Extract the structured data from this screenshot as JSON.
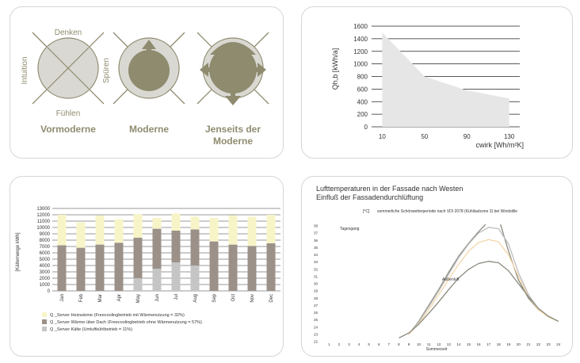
{
  "colors": {
    "olive": "#8f8b6f",
    "olive_light": "#d9d8d2",
    "chart_gray": "#e6e6e6",
    "brown": "#9c9189",
    "cream": "#f7f5c8",
    "light_gray": "#c5c5c5",
    "curve_dark": "#8a8a7e",
    "curve_gray": "#bdbdbd",
    "curve_peach": "#f3d6a8"
  },
  "diagram": {
    "top_label": "Denken",
    "bottom_label": "Fühlen",
    "left_label": "Intuition",
    "right_label": "Spüren",
    "caption1": "Vormoderne",
    "caption2": "Moderne",
    "caption3_line1": "Jenseits der",
    "caption3_line2": "Moderne"
  },
  "chart_data": [
    {
      "type": "area",
      "ylabel": "Qh,b [kWh/a]",
      "xlabel": "cwirk [Wh/m²K]",
      "x": [
        10,
        50,
        90,
        130
      ],
      "x_tick_labels": [
        "10",
        "50",
        "90",
        "130"
      ],
      "y": [
        1500,
        800,
        580,
        450
      ],
      "ylim": [
        0,
        1600
      ],
      "y_ticks": [
        0,
        200,
        400,
        600,
        800,
        1000,
        1200,
        1400,
        1600
      ],
      "grid": true
    },
    {
      "type": "bar",
      "ylabel": "[Kältemenge kWh]",
      "categories": [
        "Jan",
        "Feb",
        "Mar",
        "Apr",
        "May",
        "Jun",
        "Jul",
        "Aug",
        "Sep",
        "Oct",
        "Nov",
        "Dec"
      ],
      "ylim": [
        0,
        13000
      ],
      "y_ticks": [
        0,
        1000,
        2000,
        3000,
        4000,
        5000,
        6000,
        7000,
        8000,
        9000,
        10000,
        11000,
        12000,
        13000
      ],
      "series": [
        {
          "name": "Q _Server Kälte (Umluftkühlbetrieb = 11%)",
          "values": [
            0,
            0,
            0,
            0,
            2000,
            3500,
            4500,
            4000,
            0,
            0,
            0,
            0
          ]
        },
        {
          "name": "Q _Server Wärme über Dach (Freecoolingbetrieb ohne Wärmenutzung = 57%)",
          "values": [
            7200,
            6800,
            7300,
            7600,
            6400,
            6300,
            5000,
            5700,
            7800,
            7300,
            7100,
            7500
          ]
        },
        {
          "name": "Q _Server Heizwärme (Freecoolingbetrieb mit Wärmenutzung = 32%)",
          "values": [
            4800,
            4000,
            4600,
            3700,
            3700,
            1700,
            2700,
            2000,
            3700,
            4600,
            4600,
            4500
          ]
        }
      ],
      "legend": "bottom-left"
    },
    {
      "type": "line",
      "title_line1": "Lufttemperaturen in der Fassade nach Westen",
      "title_line2": "Einfluß der Fassadendurchlüftung",
      "subtitle_unit": "[°C]",
      "subtitle": "sommerliche Schönwetterperiode nach VDI 2078 (Kühllastzone 3) bei Windstille",
      "xlabel": "Sommerzeit",
      "x_ticks": [
        1,
        2,
        3,
        4,
        5,
        6,
        7,
        8,
        9,
        10,
        11,
        12,
        13,
        14,
        15,
        16,
        17,
        18,
        19,
        20,
        21,
        22,
        23,
        24
      ],
      "y_ticks": [
        22,
        23,
        24,
        25,
        26,
        27,
        28,
        29,
        30,
        31,
        32,
        33,
        34,
        35,
        36,
        37,
        38
      ],
      "xlim": [
        1,
        24
      ],
      "ylim": [
        22,
        38
      ],
      "annotation_tagesgang": "Tagesgang",
      "annotation_aussenluft": "Außenluft",
      "series": [
        {
          "x": [
            9,
            10,
            11,
            12,
            13,
            14,
            15,
            16,
            16.7
          ],
          "y": [
            23,
            24.8,
            27,
            29.2,
            31.6,
            33.8,
            35.6,
            37.2,
            38.2
          ]
        },
        {
          "x": [
            18.2,
            19,
            20,
            21,
            22,
            23,
            24
          ],
          "y": [
            38.2,
            34.5,
            30.5,
            28,
            26.4,
            25.5,
            24.8
          ]
        },
        {
          "x": [
            9,
            10,
            11,
            12,
            13,
            14,
            15,
            16,
            17,
            18,
            19,
            20,
            21,
            22,
            23,
            24
          ],
          "y": [
            23,
            24.7,
            26.8,
            29,
            31.3,
            33.6,
            35.5,
            37,
            37.8,
            37.6,
            35.5,
            31.5,
            28.5,
            26.5,
            25.5,
            24.8
          ]
        },
        {
          "x": [
            9,
            10,
            11,
            12,
            13,
            14,
            15,
            16,
            17,
            18,
            19,
            20,
            21,
            22,
            23,
            24
          ],
          "y": [
            23,
            24.5,
            26.4,
            28.5,
            30.6,
            32.7,
            34.5,
            35.7,
            36.1,
            35.8,
            34,
            31,
            28.2,
            26.4,
            25.4,
            24.8
          ]
        },
        {
          "x": [
            8,
            9,
            10,
            11,
            12,
            13,
            14,
            15,
            16,
            17,
            18,
            19,
            20,
            21,
            22,
            23,
            24
          ],
          "y": [
            22.5,
            23.2,
            24.4,
            25.9,
            27.5,
            29.2,
            30.8,
            32,
            32.8,
            33.1,
            32.9,
            31.8,
            30,
            28.2,
            26.6,
            25.5,
            24.8
          ]
        }
      ]
    }
  ]
}
